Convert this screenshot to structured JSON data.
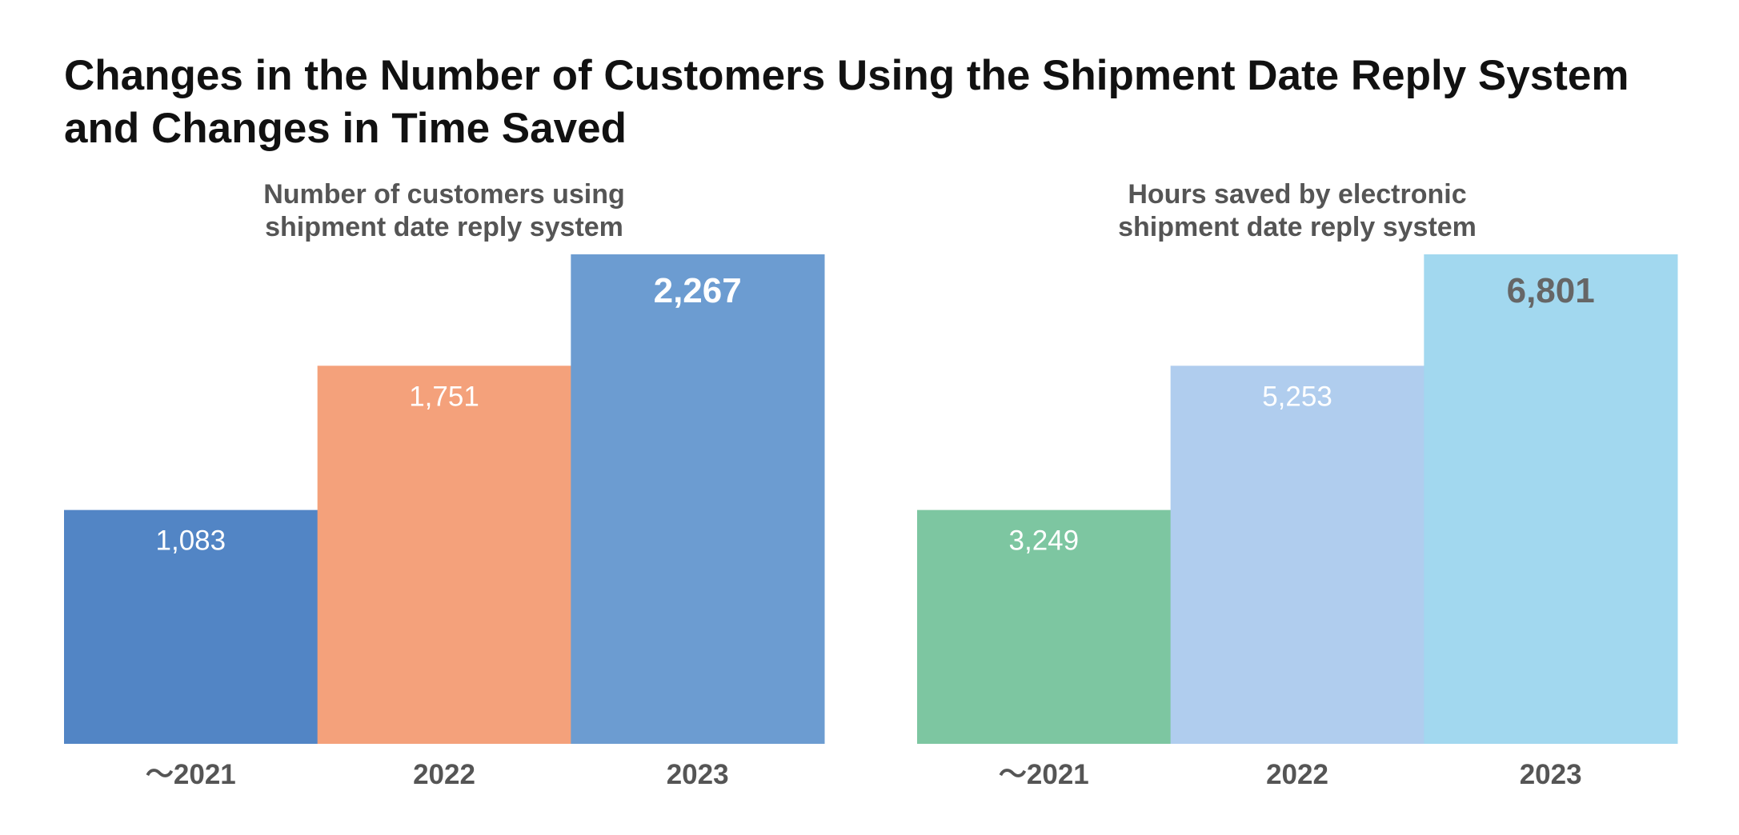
{
  "title": "Changes in the Number of Customers Using the Shipment Date Reply System and Changes in Time Saved",
  "chart_data": [
    {
      "type": "bar",
      "title": "Number of customers using shipment date reply system",
      "title_lines": [
        "Number of customers using",
        "shipment date reply system"
      ],
      "categories": [
        "～2021",
        "2022",
        "2023"
      ],
      "values": [
        1083,
        1751,
        2267
      ],
      "value_labels": [
        "1,083",
        "1,751",
        "2,267"
      ],
      "colors": [
        "#5285C5",
        "#F4A17B",
        "#6C9CD1"
      ],
      "label_colors": [
        "#ffffff",
        "#ffffff",
        "#ffffff"
      ],
      "highlight_index": 2,
      "ylim": [
        0,
        2267
      ],
      "grid": false,
      "bar_gap": 0
    },
    {
      "type": "bar",
      "title": "Hours saved by electronic shipment date reply system",
      "title_lines": [
        "Hours saved by electronic",
        "shipment date reply system"
      ],
      "categories": [
        "～2021",
        "2022",
        "2023"
      ],
      "values": [
        3249,
        5253,
        6801
      ],
      "value_labels": [
        "3,249",
        "5,253",
        "6,801"
      ],
      "colors": [
        "#7DC6A1",
        "#B0CDEE",
        "#A2D8EF"
      ],
      "label_colors": [
        "#ffffff",
        "#ffffff",
        "#666666"
      ],
      "highlight_index": 2,
      "ylim": [
        0,
        6801
      ],
      "grid": false,
      "bar_gap": 0
    }
  ]
}
